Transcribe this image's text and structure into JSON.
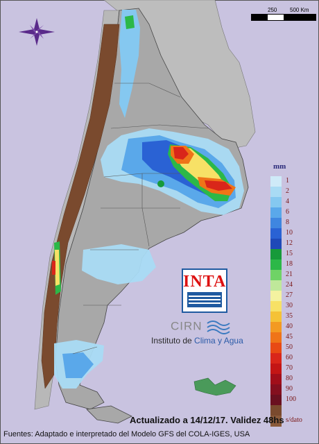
{
  "scale": {
    "labels": [
      "250",
      "500 Km"
    ]
  },
  "legend": {
    "unit": "mm",
    "entries": [
      {
        "label": "1",
        "color": "#cfeaf8"
      },
      {
        "label": "2",
        "color": "#a9dbf4"
      },
      {
        "label": "4",
        "color": "#85c8f0"
      },
      {
        "label": "6",
        "color": "#5aa8ea"
      },
      {
        "label": "8",
        "color": "#3f86e0"
      },
      {
        "label": "10",
        "color": "#2a62d4"
      },
      {
        "label": "12",
        "color": "#1f49b8"
      },
      {
        "label": "15",
        "color": "#179a3a"
      },
      {
        "label": "18",
        "color": "#2cb848"
      },
      {
        "label": "21",
        "color": "#6fd366"
      },
      {
        "label": "24",
        "color": "#bfe89a"
      },
      {
        "label": "27",
        "color": "#f4f2a0"
      },
      {
        "label": "30",
        "color": "#f7e166"
      },
      {
        "label": "35",
        "color": "#f5c236"
      },
      {
        "label": "40",
        "color": "#f39a22"
      },
      {
        "label": "45",
        "color": "#ef7418"
      },
      {
        "label": "50",
        "color": "#e84a14"
      },
      {
        "label": "60",
        "color": "#d9261a"
      },
      {
        "label": "70",
        "color": "#c31515"
      },
      {
        "label": "80",
        "color": "#a10e1a"
      },
      {
        "label": "90",
        "color": "#840f1f"
      },
      {
        "label": "100",
        "color": "#6a1020"
      },
      {
        "label": "",
        "color": "#7a4a2e"
      },
      {
        "label": "s/dato",
        "color": "#8a5a3a"
      }
    ]
  },
  "logos": {
    "inta": "INTA",
    "cirn": "CIRN",
    "instituto_a": "Instituto de ",
    "instituto_b": "Clima y Agua"
  },
  "footer": {
    "updated": "Actualizado a 14/12/17. Validez 48hs",
    "sources": "Fuentes: Adaptado e interpretado del Modelo GFS del COLA-IGES, USA"
  },
  "icons": [
    "compass-rose-icon"
  ]
}
